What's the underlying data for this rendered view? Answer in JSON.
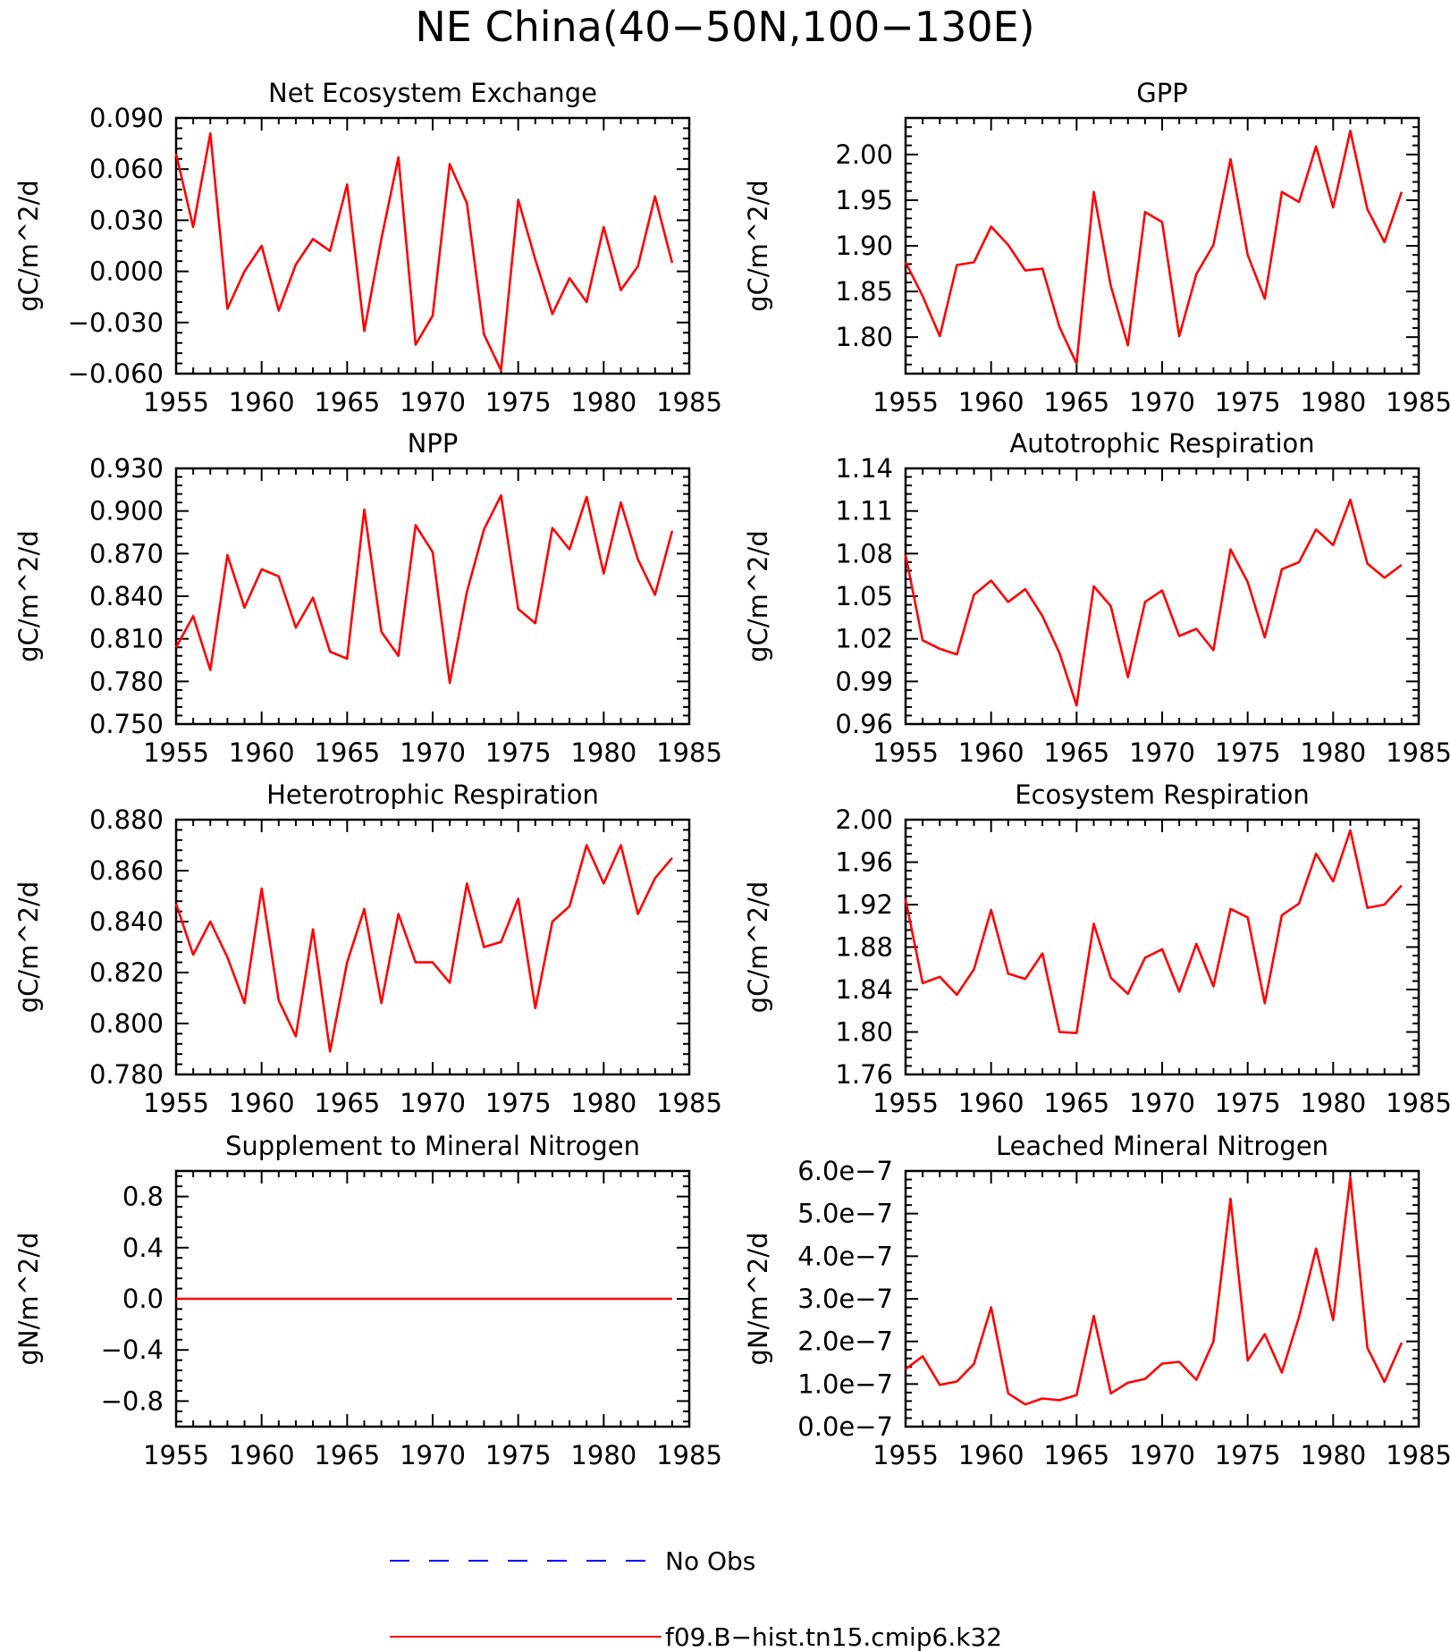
{
  "figure": {
    "title": "NE China(40−50N,100−130E)"
  },
  "legend": {
    "entries": [
      {
        "label": "No Obs",
        "color": "#0000ff",
        "dash": true
      },
      {
        "label": "f09.B−hist.tn15.cmip6.k32",
        "color": "#ff0000",
        "dash": false
      }
    ]
  },
  "chart_data": [
    {
      "type": "line",
      "title": "Net Ecosystem Exchange",
      "ylabel": "gC/m^2/d",
      "xlim": [
        1955,
        1985
      ],
      "xticks": [
        1955,
        1960,
        1965,
        1970,
        1975,
        1980,
        1985
      ],
      "ylim": [
        -0.06,
        0.09
      ],
      "yticks": [
        -0.06,
        -0.03,
        0.0,
        0.03,
        0.06,
        0.09
      ],
      "ytick_labels": [
        "−0.060",
        "−0.030",
        "0.000",
        "0.030",
        "0.060",
        "0.090"
      ],
      "series": [
        {
          "color": "#ff0000",
          "x": [
            1955,
            1956,
            1957,
            1958,
            1959,
            1960,
            1961,
            1962,
            1963,
            1964,
            1965,
            1966,
            1967,
            1968,
            1969,
            1970,
            1971,
            1972,
            1973,
            1974,
            1975,
            1976,
            1977,
            1978,
            1979,
            1980,
            1981,
            1982,
            1983,
            1984
          ],
          "y": [
            0.069,
            0.026,
            0.081,
            -0.022,
            0.0,
            0.015,
            -0.023,
            0.004,
            0.019,
            0.012,
            0.051,
            -0.035,
            0.019,
            0.067,
            -0.043,
            -0.026,
            0.063,
            0.04,
            -0.037,
            -0.058,
            0.042,
            0.007,
            -0.025,
            -0.004,
            -0.018,
            0.026,
            -0.011,
            0.003,
            0.044,
            0.005
          ]
        }
      ]
    },
    {
      "type": "line",
      "title": "GPP",
      "ylabel": "gC/m^2/d",
      "xlim": [
        1955,
        1985
      ],
      "xticks": [
        1955,
        1960,
        1965,
        1970,
        1975,
        1980,
        1985
      ],
      "ylim": [
        1.76,
        2.04
      ],
      "yticks": [
        1.8,
        1.85,
        1.9,
        1.95,
        2.0
      ],
      "ytick_labels": [
        "1.80",
        "1.85",
        "1.90",
        "1.95",
        "2.00"
      ],
      "series": [
        {
          "color": "#ff0000",
          "x": [
            1955,
            1956,
            1957,
            1958,
            1959,
            1960,
            1961,
            1962,
            1963,
            1964,
            1965,
            1966,
            1967,
            1968,
            1969,
            1970,
            1971,
            1972,
            1973,
            1974,
            1975,
            1976,
            1977,
            1978,
            1979,
            1980,
            1981,
            1982,
            1983,
            1984
          ],
          "y": [
            1.882,
            1.845,
            1.801,
            1.879,
            1.882,
            1.921,
            1.901,
            1.873,
            1.875,
            1.811,
            1.771,
            1.959,
            1.856,
            1.791,
            1.937,
            1.926,
            1.801,
            1.869,
            1.901,
            1.995,
            1.89,
            1.842,
            1.959,
            1.948,
            2.009,
            1.942,
            2.026,
            1.94,
            1.904,
            1.959
          ]
        }
      ]
    },
    {
      "type": "line",
      "title": "NPP",
      "ylabel": "gC/m^2/d",
      "xlim": [
        1955,
        1985
      ],
      "xticks": [
        1955,
        1960,
        1965,
        1970,
        1975,
        1980,
        1985
      ],
      "ylim": [
        0.75,
        0.93
      ],
      "yticks": [
        0.75,
        0.78,
        0.81,
        0.84,
        0.87,
        0.9,
        0.93
      ],
      "ytick_labels": [
        "0.750",
        "0.780",
        "0.810",
        "0.840",
        "0.870",
        "0.900",
        "0.930"
      ],
      "series": [
        {
          "color": "#ff0000",
          "x": [
            1955,
            1956,
            1957,
            1958,
            1959,
            1960,
            1961,
            1962,
            1963,
            1964,
            1965,
            1966,
            1967,
            1968,
            1969,
            1970,
            1971,
            1972,
            1973,
            1974,
            1975,
            1976,
            1977,
            1978,
            1979,
            1980,
            1981,
            1982,
            1983,
            1984
          ],
          "y": [
            0.804,
            0.826,
            0.788,
            0.869,
            0.832,
            0.859,
            0.854,
            0.818,
            0.839,
            0.801,
            0.796,
            0.901,
            0.815,
            0.798,
            0.89,
            0.871,
            0.779,
            0.843,
            0.887,
            0.911,
            0.831,
            0.821,
            0.888,
            0.873,
            0.91,
            0.856,
            0.906,
            0.866,
            0.841,
            0.886
          ]
        }
      ]
    },
    {
      "type": "line",
      "title": "Autotrophic Respiration",
      "ylabel": "gC/m^2/d",
      "xlim": [
        1955,
        1985
      ],
      "xticks": [
        1955,
        1960,
        1965,
        1970,
        1975,
        1980,
        1985
      ],
      "ylim": [
        0.96,
        1.14
      ],
      "yticks": [
        0.96,
        0.99,
        1.02,
        1.05,
        1.08,
        1.11,
        1.14
      ],
      "ytick_labels": [
        "0.96",
        "0.99",
        "1.02",
        "1.05",
        "1.08",
        "1.11",
        "1.14"
      ],
      "series": [
        {
          "color": "#ff0000",
          "x": [
            1955,
            1956,
            1957,
            1958,
            1959,
            1960,
            1961,
            1962,
            1963,
            1964,
            1965,
            1966,
            1967,
            1968,
            1969,
            1970,
            1971,
            1972,
            1973,
            1974,
            1975,
            1976,
            1977,
            1978,
            1979,
            1980,
            1981,
            1982,
            1983,
            1984
          ],
          "y": [
            1.079,
            1.019,
            1.013,
            1.009,
            1.051,
            1.061,
            1.046,
            1.055,
            1.036,
            1.01,
            0.973,
            1.057,
            1.043,
            0.993,
            1.046,
            1.054,
            1.022,
            1.027,
            1.012,
            1.083,
            1.06,
            1.021,
            1.069,
            1.074,
            1.097,
            1.086,
            1.118,
            1.073,
            1.063,
            1.072
          ]
        }
      ]
    },
    {
      "type": "line",
      "title": "Heterotrophic Respiration",
      "ylabel": "gC/m^2/d",
      "xlim": [
        1955,
        1985
      ],
      "xticks": [
        1955,
        1960,
        1965,
        1970,
        1975,
        1980,
        1985
      ],
      "ylim": [
        0.78,
        0.88
      ],
      "yticks": [
        0.78,
        0.8,
        0.82,
        0.84,
        0.86,
        0.88
      ],
      "ytick_labels": [
        "0.780",
        "0.800",
        "0.820",
        "0.840",
        "0.860",
        "0.880"
      ],
      "series": [
        {
          "color": "#ff0000",
          "x": [
            1955,
            1956,
            1957,
            1958,
            1959,
            1960,
            1961,
            1962,
            1963,
            1964,
            1965,
            1966,
            1967,
            1968,
            1969,
            1970,
            1971,
            1972,
            1973,
            1974,
            1975,
            1976,
            1977,
            1978,
            1979,
            1980,
            1981,
            1982,
            1983,
            1984
          ],
          "y": [
            0.847,
            0.827,
            0.84,
            0.826,
            0.808,
            0.853,
            0.809,
            0.795,
            0.837,
            0.789,
            0.824,
            0.845,
            0.808,
            0.843,
            0.824,
            0.824,
            0.816,
            0.855,
            0.83,
            0.832,
            0.849,
            0.806,
            0.84,
            0.846,
            0.87,
            0.855,
            0.87,
            0.843,
            0.857,
            0.865
          ]
        }
      ]
    },
    {
      "type": "line",
      "title": "Ecosystem Respiration",
      "ylabel": "gC/m^2/d",
      "xlim": [
        1955,
        1985
      ],
      "xticks": [
        1955,
        1960,
        1965,
        1970,
        1975,
        1980,
        1985
      ],
      "ylim": [
        1.76,
        2.0
      ],
      "yticks": [
        1.76,
        1.8,
        1.84,
        1.88,
        1.92,
        1.96,
        2.0
      ],
      "ytick_labels": [
        "1.76",
        "1.80",
        "1.84",
        "1.88",
        "1.92",
        "1.96",
        "2.00"
      ],
      "series": [
        {
          "color": "#ff0000",
          "x": [
            1955,
            1956,
            1957,
            1958,
            1959,
            1960,
            1961,
            1962,
            1963,
            1964,
            1965,
            1966,
            1967,
            1968,
            1969,
            1970,
            1971,
            1972,
            1973,
            1974,
            1975,
            1976,
            1977,
            1978,
            1979,
            1980,
            1981,
            1982,
            1983,
            1984
          ],
          "y": [
            1.925,
            1.846,
            1.852,
            1.835,
            1.859,
            1.915,
            1.855,
            1.85,
            1.874,
            1.8,
            1.799,
            1.902,
            1.851,
            1.836,
            1.87,
            1.878,
            1.838,
            1.883,
            1.843,
            1.916,
            1.908,
            1.827,
            1.91,
            1.921,
            1.968,
            1.942,
            1.99,
            1.917,
            1.92,
            1.938
          ]
        }
      ]
    },
    {
      "type": "line",
      "title": "Supplement to Mineral Nitrogen",
      "ylabel": "gN/m^2/d",
      "xlim": [
        1955,
        1985
      ],
      "xticks": [
        1955,
        1960,
        1965,
        1970,
        1975,
        1980,
        1985
      ],
      "ylim": [
        -1.0,
        1.0
      ],
      "yticks": [
        -0.8,
        -0.4,
        0.0,
        0.4,
        0.8
      ],
      "ytick_labels": [
        "−0.8",
        "−0.4",
        "0.0",
        "0.4",
        "0.8"
      ],
      "series": [
        {
          "color": "#ff0000",
          "x": [
            1955,
            1956,
            1957,
            1958,
            1959,
            1960,
            1961,
            1962,
            1963,
            1964,
            1965,
            1966,
            1967,
            1968,
            1969,
            1970,
            1971,
            1972,
            1973,
            1974,
            1975,
            1976,
            1977,
            1978,
            1979,
            1980,
            1981,
            1982,
            1983,
            1984
          ],
          "y": [
            0,
            0,
            0,
            0,
            0,
            0,
            0,
            0,
            0,
            0,
            0,
            0,
            0,
            0,
            0,
            0,
            0,
            0,
            0,
            0,
            0,
            0,
            0,
            0,
            0,
            0,
            0,
            0,
            0,
            0
          ]
        }
      ]
    },
    {
      "type": "line",
      "title": "Leached Mineral Nitrogen",
      "ylabel": "gN/m^2/d",
      "xlim": [
        1955,
        1985
      ],
      "xticks": [
        1955,
        1960,
        1965,
        1970,
        1975,
        1980,
        1985
      ],
      "ylim": [
        0.0,
        6e-07
      ],
      "yticks": [
        0.0,
        1e-07,
        2e-07,
        3e-07,
        4e-07,
        5e-07,
        6e-07
      ],
      "ytick_labels": [
        "0.0e−7",
        "1.0e−7",
        "2.0e−7",
        "3.0e−7",
        "4.0e−7",
        "5.0e−7",
        "6.0e−7"
      ],
      "series": [
        {
          "color": "#ff0000",
          "x": [
            1955,
            1956,
            1957,
            1958,
            1959,
            1960,
            1961,
            1962,
            1963,
            1964,
            1965,
            1966,
            1967,
            1968,
            1969,
            1970,
            1971,
            1972,
            1973,
            1974,
            1975,
            1976,
            1977,
            1978,
            1979,
            1980,
            1981,
            1982,
            1983,
            1984
          ],
          "y": [
            1.35e-07,
            1.65e-07,
            9.8e-08,
            1.06e-07,
            1.47e-07,
            2.8e-07,
            7.8e-08,
            5.2e-08,
            6.6e-08,
            6.2e-08,
            7.4e-08,
            2.6e-07,
            7.8e-08,
            1.03e-07,
            1.12e-07,
            1.48e-07,
            1.52e-07,
            1.1e-07,
            2e-07,
            5.35e-07,
            1.55e-07,
            2.17e-07,
            1.27e-07,
            2.57e-07,
            4.18e-07,
            2.5e-07,
            5.85e-07,
            1.85e-07,
            1.05e-07,
            1.97e-07
          ]
        }
      ]
    }
  ]
}
